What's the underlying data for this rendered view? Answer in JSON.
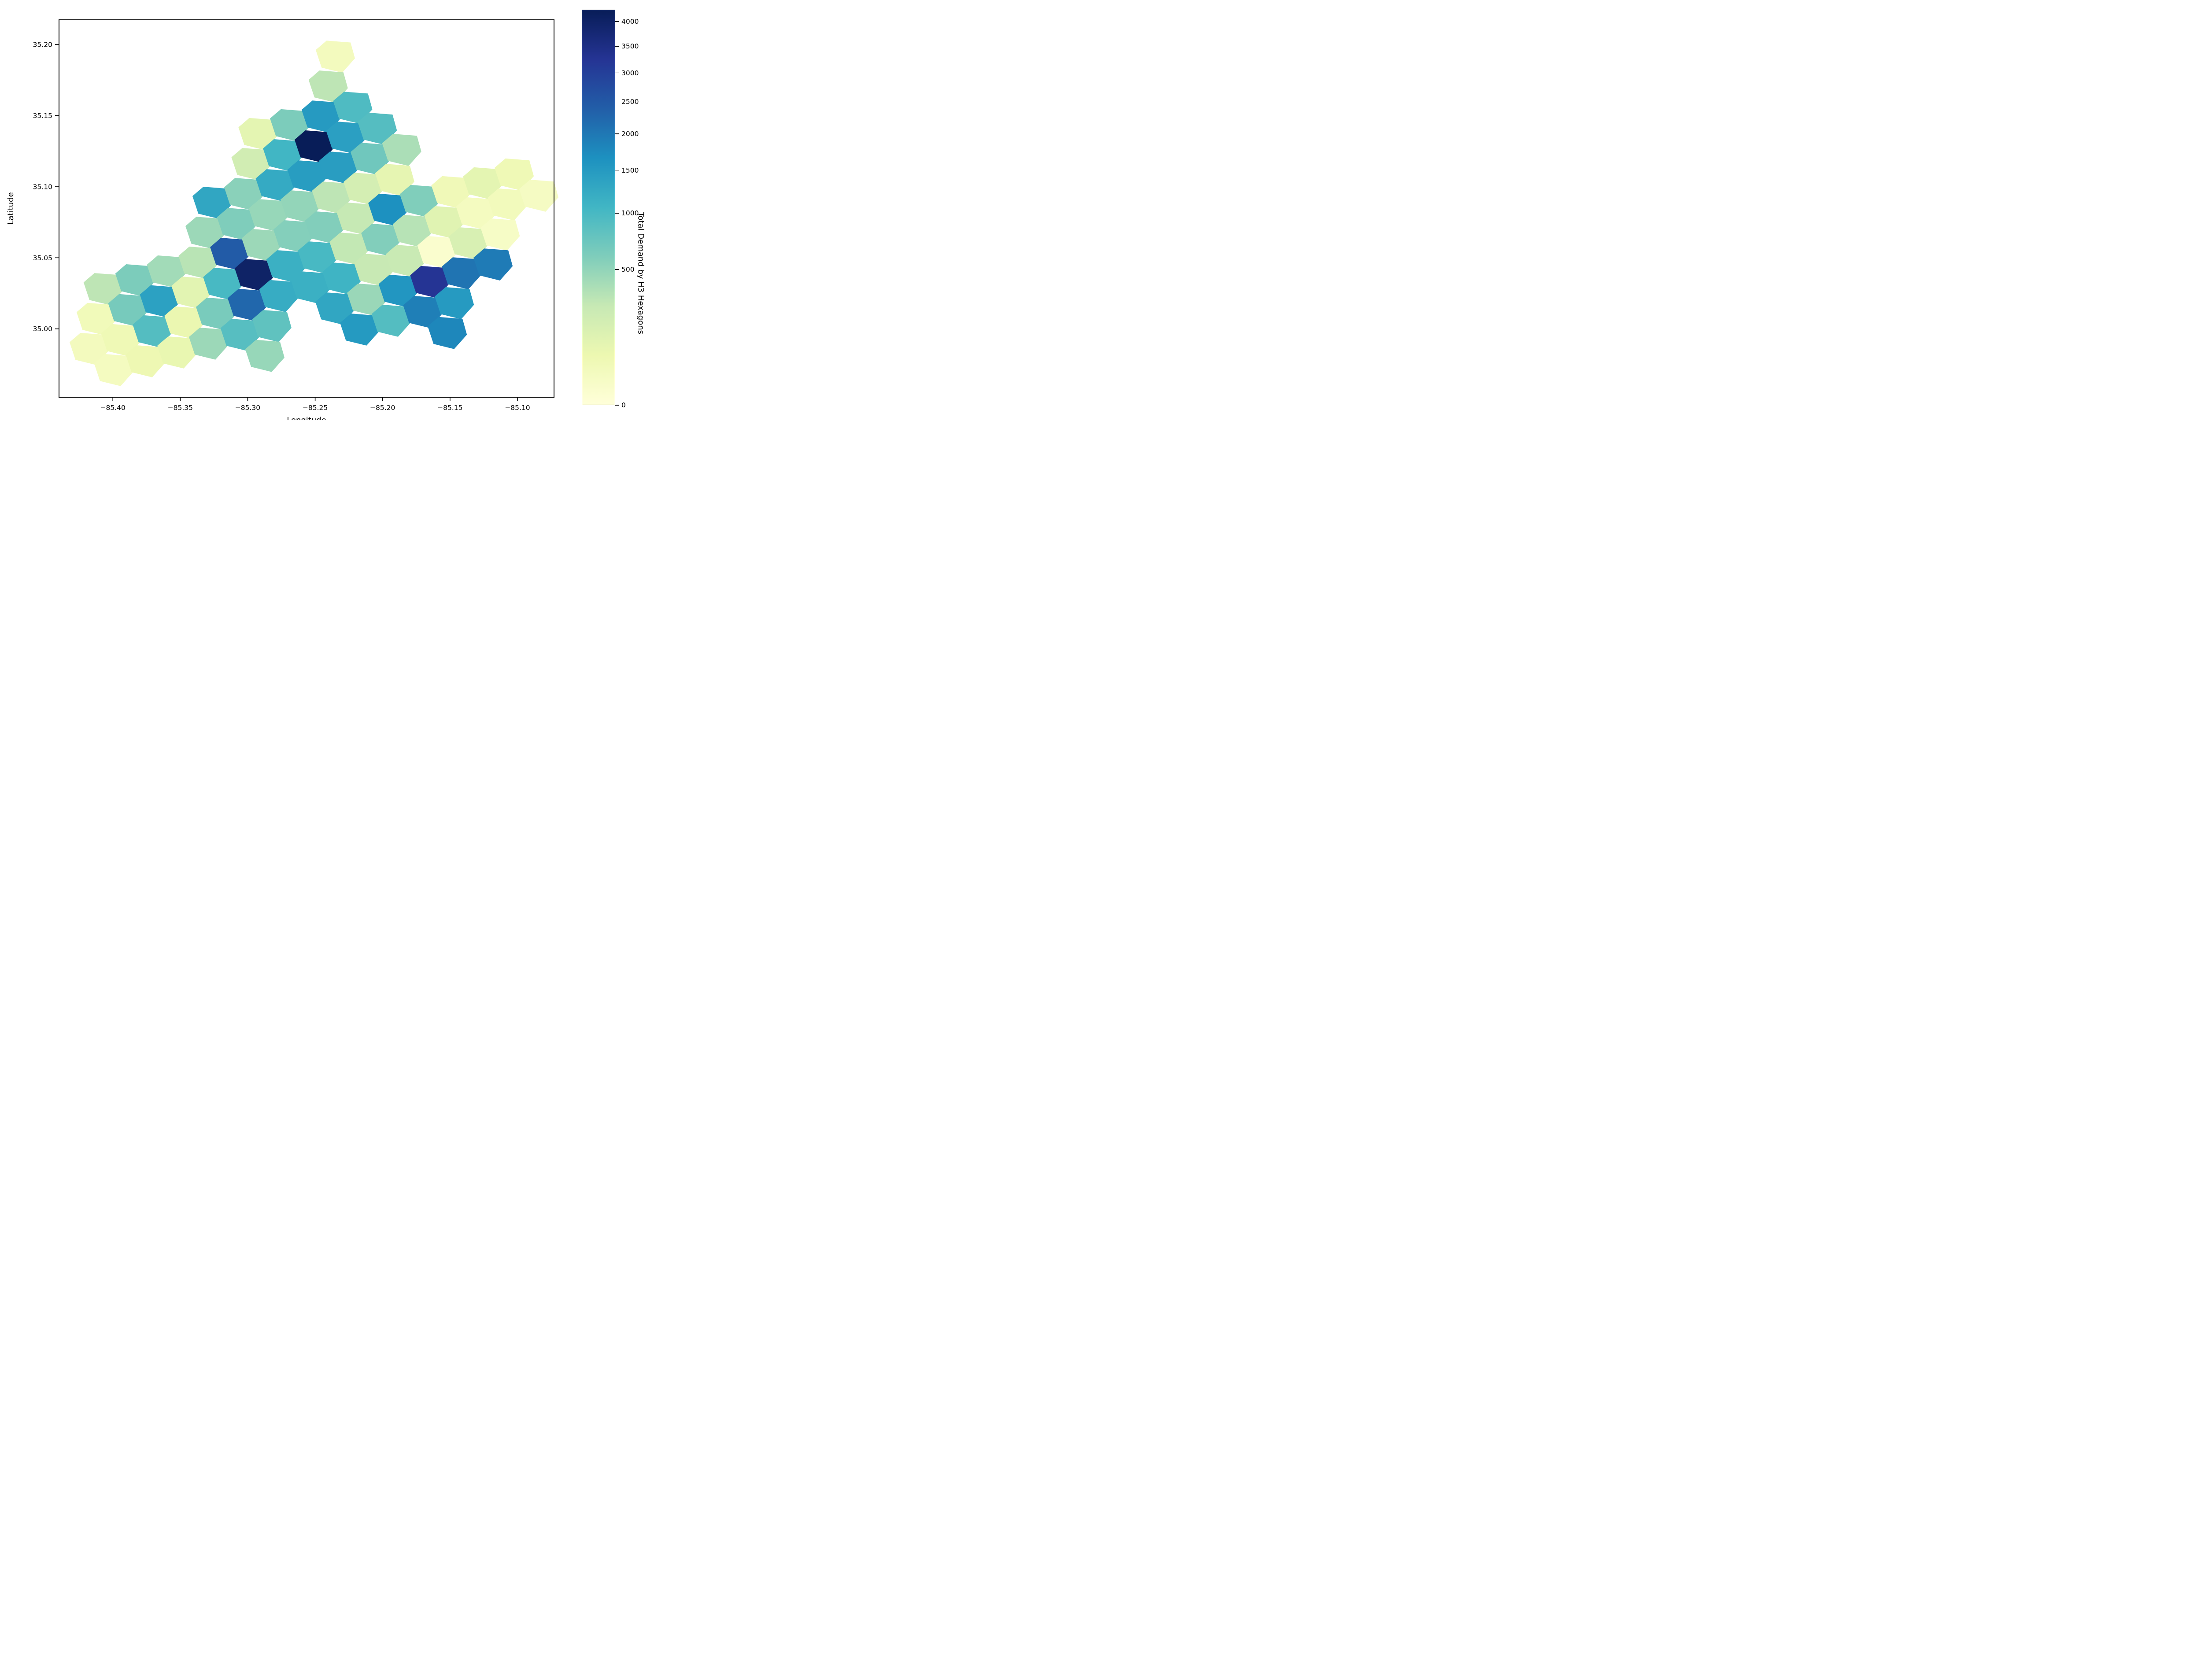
{
  "figure": {
    "xlabel": "Longitude",
    "ylabel": "Latitude",
    "x_ticks": [
      "−85.40",
      "−85.35",
      "−85.30",
      "−85.25",
      "−85.20",
      "−85.15",
      "−85.10"
    ],
    "x_tick_values": [
      -85.4,
      -85.35,
      -85.3,
      -85.25,
      -85.2,
      -85.15,
      -85.1
    ],
    "y_ticks": [
      "35.20",
      "35.15",
      "35.10",
      "35.05",
      "35.00"
    ],
    "y_tick_values": [
      35.2,
      35.15,
      35.1,
      35.05,
      35.0
    ],
    "xlim": [
      -85.4399,
      -85.0729
    ],
    "ylim": [
      34.9519,
      35.2174
    ]
  },
  "colorbar": {
    "label": "Total Demand by H3 Hexagons",
    "ticks": [
      0,
      500,
      1000,
      1500,
      2000,
      2500,
      3000,
      3500,
      4000
    ],
    "vmin": 0,
    "vmax": 4251,
    "norm": "sqrt",
    "colormap": "YlGnBu",
    "stops": [
      "#ffffd9",
      "#edf8b1",
      "#c7e9b4",
      "#7fcdbb",
      "#41b6c4",
      "#1d91c0",
      "#225ea8",
      "#253494",
      "#081d58"
    ]
  },
  "chart_data": {
    "type": "hexbin-map",
    "title": "",
    "xlabel": "Longitude",
    "ylabel": "Latitude",
    "value_label": "Total Demand by H3 Hexagons",
    "value_range": [
      0,
      4251
    ],
    "grid": false,
    "legend_position": "colorbar-right",
    "hexes": [
      {
        "lon": -85.2351,
        "lat": 35.1924,
        "value": 30
      },
      {
        "lon": -85.2404,
        "lat": 35.1714,
        "value": 300
      },
      {
        "lon": -85.2924,
        "lat": 35.138,
        "value": 100
      },
      {
        "lon": -85.269,
        "lat": 35.1442,
        "value": 620
      },
      {
        "lon": -85.2456,
        "lat": 35.1503,
        "value": 1500
      },
      {
        "lon": -85.2222,
        "lat": 35.1565,
        "value": 950
      },
      {
        "lon": -85.2976,
        "lat": 35.1169,
        "value": 200
      },
      {
        "lon": -85.2742,
        "lat": 35.1231,
        "value": 1060
      },
      {
        "lon": -85.2508,
        "lat": 35.1293,
        "value": 4251
      },
      {
        "lon": -85.2274,
        "lat": 35.1355,
        "value": 1420
      },
      {
        "lon": -85.204,
        "lat": 35.1417,
        "value": 900
      },
      {
        "lon": -85.3265,
        "lat": 35.0896,
        "value": 1310
      },
      {
        "lon": -85.303,
        "lat": 35.0958,
        "value": 540
      },
      {
        "lon": -85.2796,
        "lat": 35.102,
        "value": 1240
      },
      {
        "lon": -85.2561,
        "lat": 35.1082,
        "value": 1460
      },
      {
        "lon": -85.2327,
        "lat": 35.1144,
        "value": 1450
      },
      {
        "lon": -85.2093,
        "lat": 35.1206,
        "value": 700
      },
      {
        "lon": -85.1859,
        "lat": 35.1268,
        "value": 380
      },
      {
        "lon": -85.3317,
        "lat": 35.0685,
        "value": 450
      },
      {
        "lon": -85.3083,
        "lat": 35.0747,
        "value": 600
      },
      {
        "lon": -85.2848,
        "lat": 35.0809,
        "value": 470
      },
      {
        "lon": -85.2613,
        "lat": 35.0871,
        "value": 490
      },
      {
        "lon": -85.2379,
        "lat": 35.0933,
        "value": 300
      },
      {
        "lon": -85.2145,
        "lat": 35.0995,
        "value": 180
      },
      {
        "lon": -85.1911,
        "lat": 35.1057,
        "value": 95
      },
      {
        "lon": -85.4072,
        "lat": 35.0289,
        "value": 300
      },
      {
        "lon": -85.3837,
        "lat": 35.0351,
        "value": 620
      },
      {
        "lon": -85.3603,
        "lat": 35.0413,
        "value": 420
      },
      {
        "lon": -85.3369,
        "lat": 35.0475,
        "value": 320
      },
      {
        "lon": -85.3134,
        "lat": 35.0537,
        "value": 2450
      },
      {
        "lon": -85.29,
        "lat": 35.0599,
        "value": 450
      },
      {
        "lon": -85.2665,
        "lat": 35.0661,
        "value": 570
      },
      {
        "lon": -85.2431,
        "lat": 35.0723,
        "value": 580
      },
      {
        "lon": -85.2197,
        "lat": 35.0785,
        "value": 270
      },
      {
        "lon": -85.1962,
        "lat": 35.0847,
        "value": 1660
      },
      {
        "lon": -85.1728,
        "lat": 35.0909,
        "value": 590
      },
      {
        "lon": -85.1494,
        "lat": 35.0971,
        "value": 45
      },
      {
        "lon": -85.1259,
        "lat": 35.1033,
        "value": 100
      },
      {
        "lon": -85.1025,
        "lat": 35.1095,
        "value": 50
      },
      {
        "lon": -85.4124,
        "lat": 35.0079,
        "value": 40
      },
      {
        "lon": -85.389,
        "lat": 35.0141,
        "value": 650
      },
      {
        "lon": -85.3655,
        "lat": 35.0203,
        "value": 1390
      },
      {
        "lon": -85.3421,
        "lat": 35.0264,
        "value": 110
      },
      {
        "lon": -85.3186,
        "lat": 35.0326,
        "value": 1000
      },
      {
        "lon": -85.2952,
        "lat": 35.0388,
        "value": 4000
      },
      {
        "lon": -85.2717,
        "lat": 35.045,
        "value": 1150
      },
      {
        "lon": -85.2483,
        "lat": 35.0512,
        "value": 1000
      },
      {
        "lon": -85.2249,
        "lat": 35.0574,
        "value": 280
      },
      {
        "lon": -85.2014,
        "lat": 35.0636,
        "value": 580
      },
      {
        "lon": -85.178,
        "lat": 35.0698,
        "value": 330
      },
      {
        "lon": -85.1546,
        "lat": 35.076,
        "value": 120
      },
      {
        "lon": -85.1311,
        "lat": 35.0822,
        "value": 25
      },
      {
        "lon": -85.1077,
        "lat": 35.0884,
        "value": 35
      },
      {
        "lon": -85.0843,
        "lat": 35.0946,
        "value": 20
      },
      {
        "lon": -85.4176,
        "lat": 34.9868,
        "value": 30
      },
      {
        "lon": -85.3942,
        "lat": 34.993,
        "value": 50
      },
      {
        "lon": -85.3708,
        "lat": 34.9992,
        "value": 910
      },
      {
        "lon": -85.3473,
        "lat": 35.0054,
        "value": 75
      },
      {
        "lon": -85.3239,
        "lat": 35.0116,
        "value": 640
      },
      {
        "lon": -85.3004,
        "lat": 35.0178,
        "value": 2250
      },
      {
        "lon": -85.277,
        "lat": 35.024,
        "value": 1210
      },
      {
        "lon": -85.2535,
        "lat": 35.0301,
        "value": 1150
      },
      {
        "lon": -85.2301,
        "lat": 35.0363,
        "value": 1090
      },
      {
        "lon": -85.2067,
        "lat": 35.0425,
        "value": 260
      },
      {
        "lon": -85.1832,
        "lat": 35.0487,
        "value": 250
      },
      {
        "lon": -85.1598,
        "lat": 35.0549,
        "value": 5
      },
      {
        "lon": -85.1364,
        "lat": 35.0611,
        "value": 160
      },
      {
        "lon": -85.1129,
        "lat": 35.0673,
        "value": 15
      },
      {
        "lon": -85.3994,
        "lat": 34.9719,
        "value": 25
      },
      {
        "lon": -85.376,
        "lat": 34.9781,
        "value": 60
      },
      {
        "lon": -85.3526,
        "lat": 34.9843,
        "value": 80
      },
      {
        "lon": -85.3291,
        "lat": 34.9905,
        "value": 450
      },
      {
        "lon": -85.3057,
        "lat": 34.9967,
        "value": 880
      },
      {
        "lon": -85.2822,
        "lat": 35.0029,
        "value": 810
      },
      {
        "lon": -85.2354,
        "lat": 35.0153,
        "value": 1310
      },
      {
        "lon": -85.2119,
        "lat": 35.0215,
        "value": 460
      },
      {
        "lon": -85.1885,
        "lat": 35.0277,
        "value": 1570
      },
      {
        "lon": -85.1651,
        "lat": 35.0339,
        "value": 3250
      },
      {
        "lon": -85.1416,
        "lat": 35.04,
        "value": 2060
      },
      {
        "lon": -85.1182,
        "lat": 35.0462,
        "value": 1960
      },
      {
        "lon": -85.2874,
        "lat": 34.9819,
        "value": 470
      },
      {
        "lon": -85.2171,
        "lat": 35.0004,
        "value": 1510
      },
      {
        "lon": -85.1937,
        "lat": 35.0066,
        "value": 910
      },
      {
        "lon": -85.1703,
        "lat": 35.0128,
        "value": 1910
      },
      {
        "lon": -85.1469,
        "lat": 35.019,
        "value": 1500
      },
      {
        "lon": -85.1521,
        "lat": 34.998,
        "value": 1800
      }
    ]
  }
}
